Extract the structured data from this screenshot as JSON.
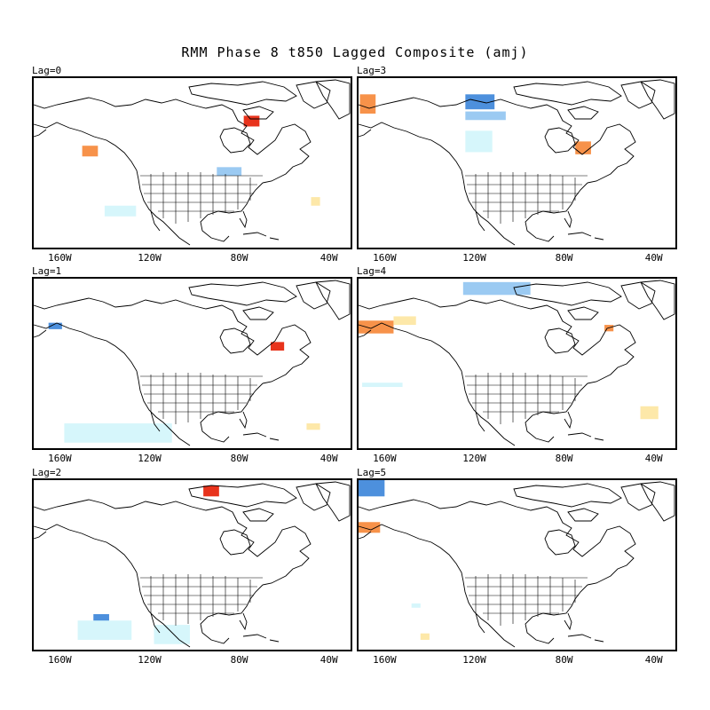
{
  "title": "RMM Phase 8 t850 Lagged Composite (amj)",
  "colors": {
    "strong_warm": "#e8331c",
    "warm": "#f7924a",
    "light_warm": "#fde8a9",
    "strong_cool": "#4d90dd",
    "cool": "#9bcaf2",
    "light_cool": "#d6f6fb"
  },
  "x_ticks": [
    "160W",
    "120W",
    "80W",
    "40W"
  ],
  "panels": [
    {
      "label": "Lag=0",
      "anomalies": [
        {
          "lon": [
            -78,
            -71
          ],
          "lat": [
            57,
            62
          ],
          "kind": "strong_warm"
        },
        {
          "lon": [
            -150,
            -143
          ],
          "lat": [
            43,
            48
          ],
          "kind": "warm"
        },
        {
          "lon": [
            -90,
            -79
          ],
          "lat": [
            34,
            38
          ],
          "kind": "cool"
        },
        {
          "lon": [
            -140,
            -126
          ],
          "lat": [
            15,
            20
          ],
          "kind": "light_cool"
        },
        {
          "lon": [
            -48,
            -44
          ],
          "lat": [
            20,
            24
          ],
          "kind": "light_warm"
        }
      ]
    },
    {
      "label": "Lag=3",
      "anomalies": [
        {
          "lon": [
            -124,
            -111
          ],
          "lat": [
            65,
            72
          ],
          "kind": "strong_cool"
        },
        {
          "lon": [
            -124,
            -106
          ],
          "lat": [
            60,
            64
          ],
          "kind": "cool"
        },
        {
          "lon": [
            -124,
            -112
          ],
          "lat": [
            45,
            55
          ],
          "kind": "light_cool"
        },
        {
          "lon": [
            -171,
            -164
          ],
          "lat": [
            63,
            72
          ],
          "kind": "warm"
        },
        {
          "lon": [
            -75,
            -68
          ],
          "lat": [
            44,
            50
          ],
          "kind": "warm"
        }
      ]
    },
    {
      "label": "Lag=1",
      "anomalies": [
        {
          "lon": [
            -165,
            -159
          ],
          "lat": [
            56,
            59
          ],
          "kind": "strong_cool"
        },
        {
          "lon": [
            -66,
            -60
          ],
          "lat": [
            46,
            50
          ],
          "kind": "strong_warm"
        },
        {
          "lon": [
            -158,
            -110
          ],
          "lat": [
            3,
            12
          ],
          "kind": "light_cool"
        },
        {
          "lon": [
            -50,
            -44
          ],
          "lat": [
            9,
            12
          ],
          "kind": "light_warm"
        }
      ]
    },
    {
      "label": "Lag=4",
      "anomalies": [
        {
          "lon": [
            -125,
            -95
          ],
          "lat": [
            72,
            78
          ],
          "kind": "cool"
        },
        {
          "lon": [
            -172,
            -156
          ],
          "lat": [
            54,
            60
          ],
          "kind": "warm"
        },
        {
          "lon": [
            -156,
            -146
          ],
          "lat": [
            58,
            62
          ],
          "kind": "light_warm"
        },
        {
          "lon": [
            -62,
            -58
          ],
          "lat": [
            55,
            58
          ],
          "kind": "warm"
        },
        {
          "lon": [
            -46,
            -38
          ],
          "lat": [
            14,
            20
          ],
          "kind": "light_warm"
        },
        {
          "lon": [
            -170,
            -152
          ],
          "lat": [
            29,
            31
          ],
          "kind": "light_cool"
        }
      ]
    },
    {
      "label": "Lag=2",
      "anomalies": [
        {
          "lon": [
            -96,
            -89
          ],
          "lat": [
            72,
            77
          ],
          "kind": "strong_warm"
        },
        {
          "lon": [
            -145,
            -138
          ],
          "lat": [
            12,
            17
          ],
          "kind": "strong_cool"
        },
        {
          "lon": [
            -152,
            -128
          ],
          "lat": [
            5,
            14
          ],
          "kind": "light_cool"
        },
        {
          "lon": [
            -118,
            -102
          ],
          "lat": [
            3,
            12
          ],
          "kind": "light_cool"
        }
      ]
    },
    {
      "label": "Lag=5",
      "anomalies": [
        {
          "lon": [
            -172,
            -160
          ],
          "lat": [
            72,
            80
          ],
          "kind": "strong_cool"
        },
        {
          "lon": [
            -172,
            -162
          ],
          "lat": [
            55,
            60
          ],
          "kind": "warm"
        },
        {
          "lon": [
            -144,
            -140
          ],
          "lat": [
            5,
            8
          ],
          "kind": "light_warm"
        },
        {
          "lon": [
            -148,
            -144
          ],
          "lat": [
            20,
            22
          ],
          "kind": "light_cool"
        }
      ]
    }
  ]
}
